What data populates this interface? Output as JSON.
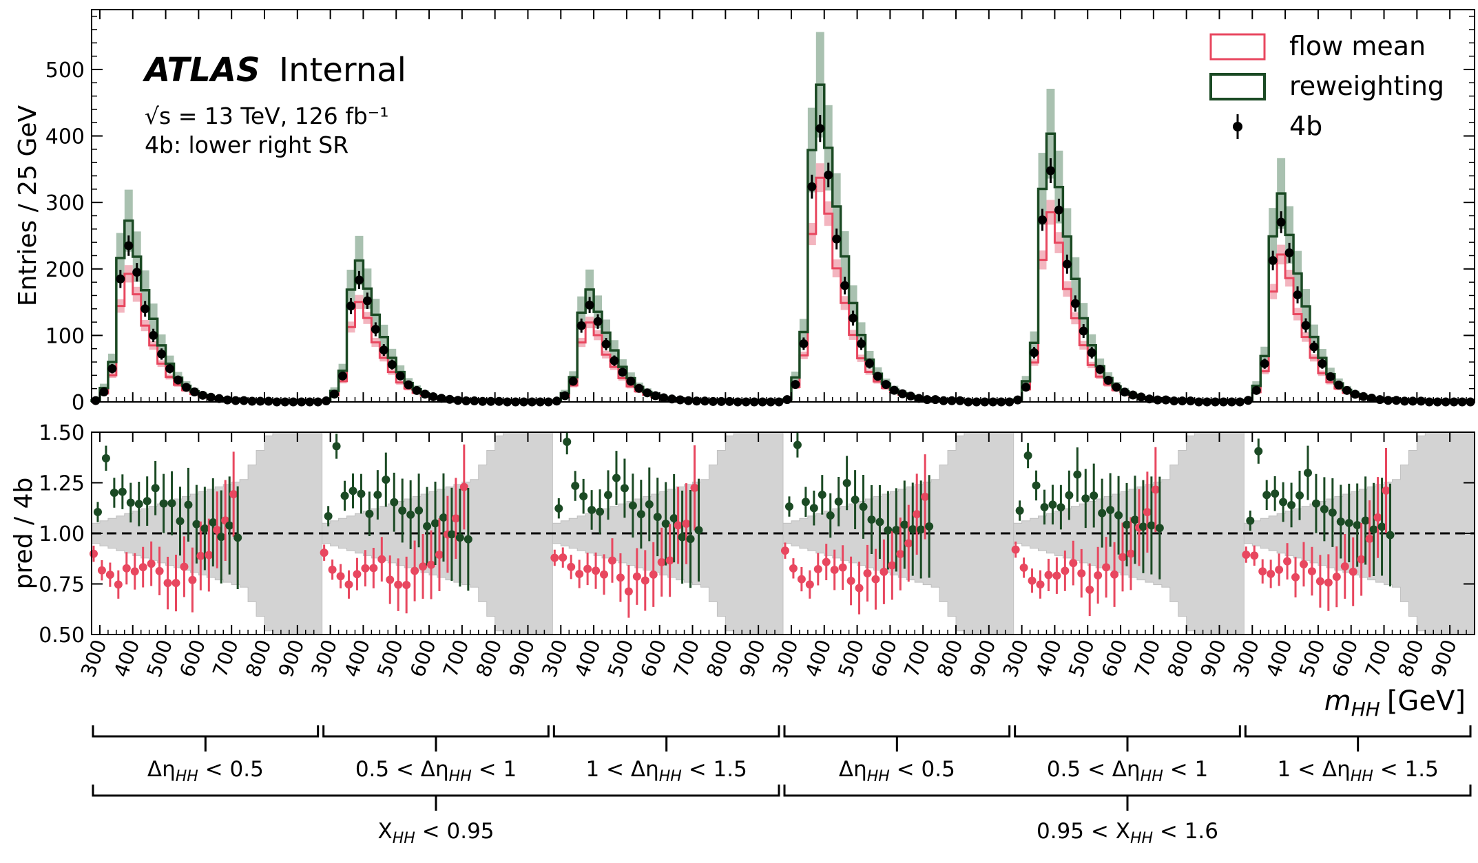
{
  "header": {
    "atlas": "ATLAS",
    "internal": "Internal",
    "energy_line": "√s = 13 TeV, 126 fb⁻¹",
    "region": "4b: lower right SR"
  },
  "chart_data": {
    "type": "histogram",
    "top_panel": {
      "ylabel": "Entries / 25 GeV",
      "ylim": [
        0,
        590
      ],
      "yticks": [
        0,
        100,
        200,
        300,
        400,
        500
      ]
    },
    "ratio_panel": {
      "ylabel": "pred / 4b",
      "ylim": [
        0.5,
        1.5
      ],
      "yticks": [
        "0.50",
        "0.75",
        "1.00",
        "1.25",
        "1.50"
      ],
      "reference_line": 1.0
    },
    "xlabel_main": "m",
    "xlabel_sub": "HH",
    "xlabel_unit": "[GeV]",
    "xtick_labels": [
      "300",
      "400",
      "500",
      "600",
      "700",
      "800",
      "900"
    ],
    "bin_width_gev": 25,
    "bins_per_segment": 28,
    "mhh_range_per_segment": [
      275,
      975
    ],
    "legend": {
      "position": "top-right",
      "entries": [
        {
          "label": "flow mean",
          "style": "red-line-box",
          "color": "#e8475f"
        },
        {
          "label": "reweighting",
          "style": "green-line-box",
          "color": "#1b4a24"
        },
        {
          "label": "4b",
          "style": "black-marker"
        }
      ]
    },
    "colors": {
      "flow": "#e8475f",
      "reweight": "#1b4a24",
      "data": "#000000",
      "reweight_band": "#a9c1b0",
      "flow_band": "#f3b5bf",
      "ratio_band": "#d3d3d3"
    },
    "segments": [
      {
        "deta": "Δη_HH < 0.5",
        "scale": 1.0
      },
      {
        "deta": "0.5 < Δη_HH < 1",
        "scale": 0.78
      },
      {
        "deta": "1 < Δη_HH < 1.5",
        "scale": 0.62
      },
      {
        "deta": "Δη_HH < 0.5",
        "scale": 1.75
      },
      {
        "deta": "0.5 < Δη_HH < 1",
        "scale": 1.48
      },
      {
        "deta": "1 < Δη_HH < 1.5",
        "scale": 1.15
      }
    ],
    "base_shape_4b": [
      2,
      15,
      50,
      185,
      235,
      195,
      140,
      100,
      72,
      50,
      33,
      22,
      15,
      10,
      7,
      5,
      3,
      2,
      2,
      1,
      1,
      1,
      0,
      0,
      0,
      0,
      0,
      0
    ],
    "flow_to_4b": [
      0.9,
      0.85,
      0.8,
      0.78,
      0.82,
      0.83,
      0.82,
      0.85,
      0.8,
      0.75,
      0.78,
      0.8,
      0.8,
      0.85,
      0.9,
      1.0,
      1.1,
      1.2,
      1.0,
      1.0,
      1.0,
      1.0,
      1.0,
      1.0,
      1.0,
      1.0,
      1.0,
      1.0
    ],
    "reweight_to_4b": [
      1.1,
      1.4,
      1.2,
      1.17,
      1.16,
      1.12,
      1.2,
      1.25,
      1.18,
      1.15,
      1.1,
      1.1,
      1.05,
      1.05,
      1.05,
      1.0,
      1.0,
      1.0,
      1.0,
      1.0,
      1.0,
      1.0,
      1.0,
      1.0,
      1.0,
      1.0,
      1.0,
      1.0
    ],
    "group_labels": [
      {
        "left": "Δη",
        "sub": "HH",
        "right": " < 0.5"
      },
      {
        "left": "0.5 < Δη",
        "sub": "HH",
        "right": " < 1"
      },
      {
        "left": "1 < Δη",
        "sub": "HH",
        "right": " < 1.5"
      },
      {
        "left": "Δη",
        "sub": "HH",
        "right": " < 0.5"
      },
      {
        "left": "0.5 < Δη",
        "sub": "HH",
        "right": " < 1"
      },
      {
        "left": "1 < Δη",
        "sub": "HH",
        "right": " < 1.5"
      }
    ],
    "supergroup_labels": [
      {
        "left": "X",
        "sub": "HH",
        "right": " < 0.95"
      },
      {
        "left": "0.95 < X",
        "sub": "HH",
        "right": " < 1.6"
      }
    ]
  }
}
